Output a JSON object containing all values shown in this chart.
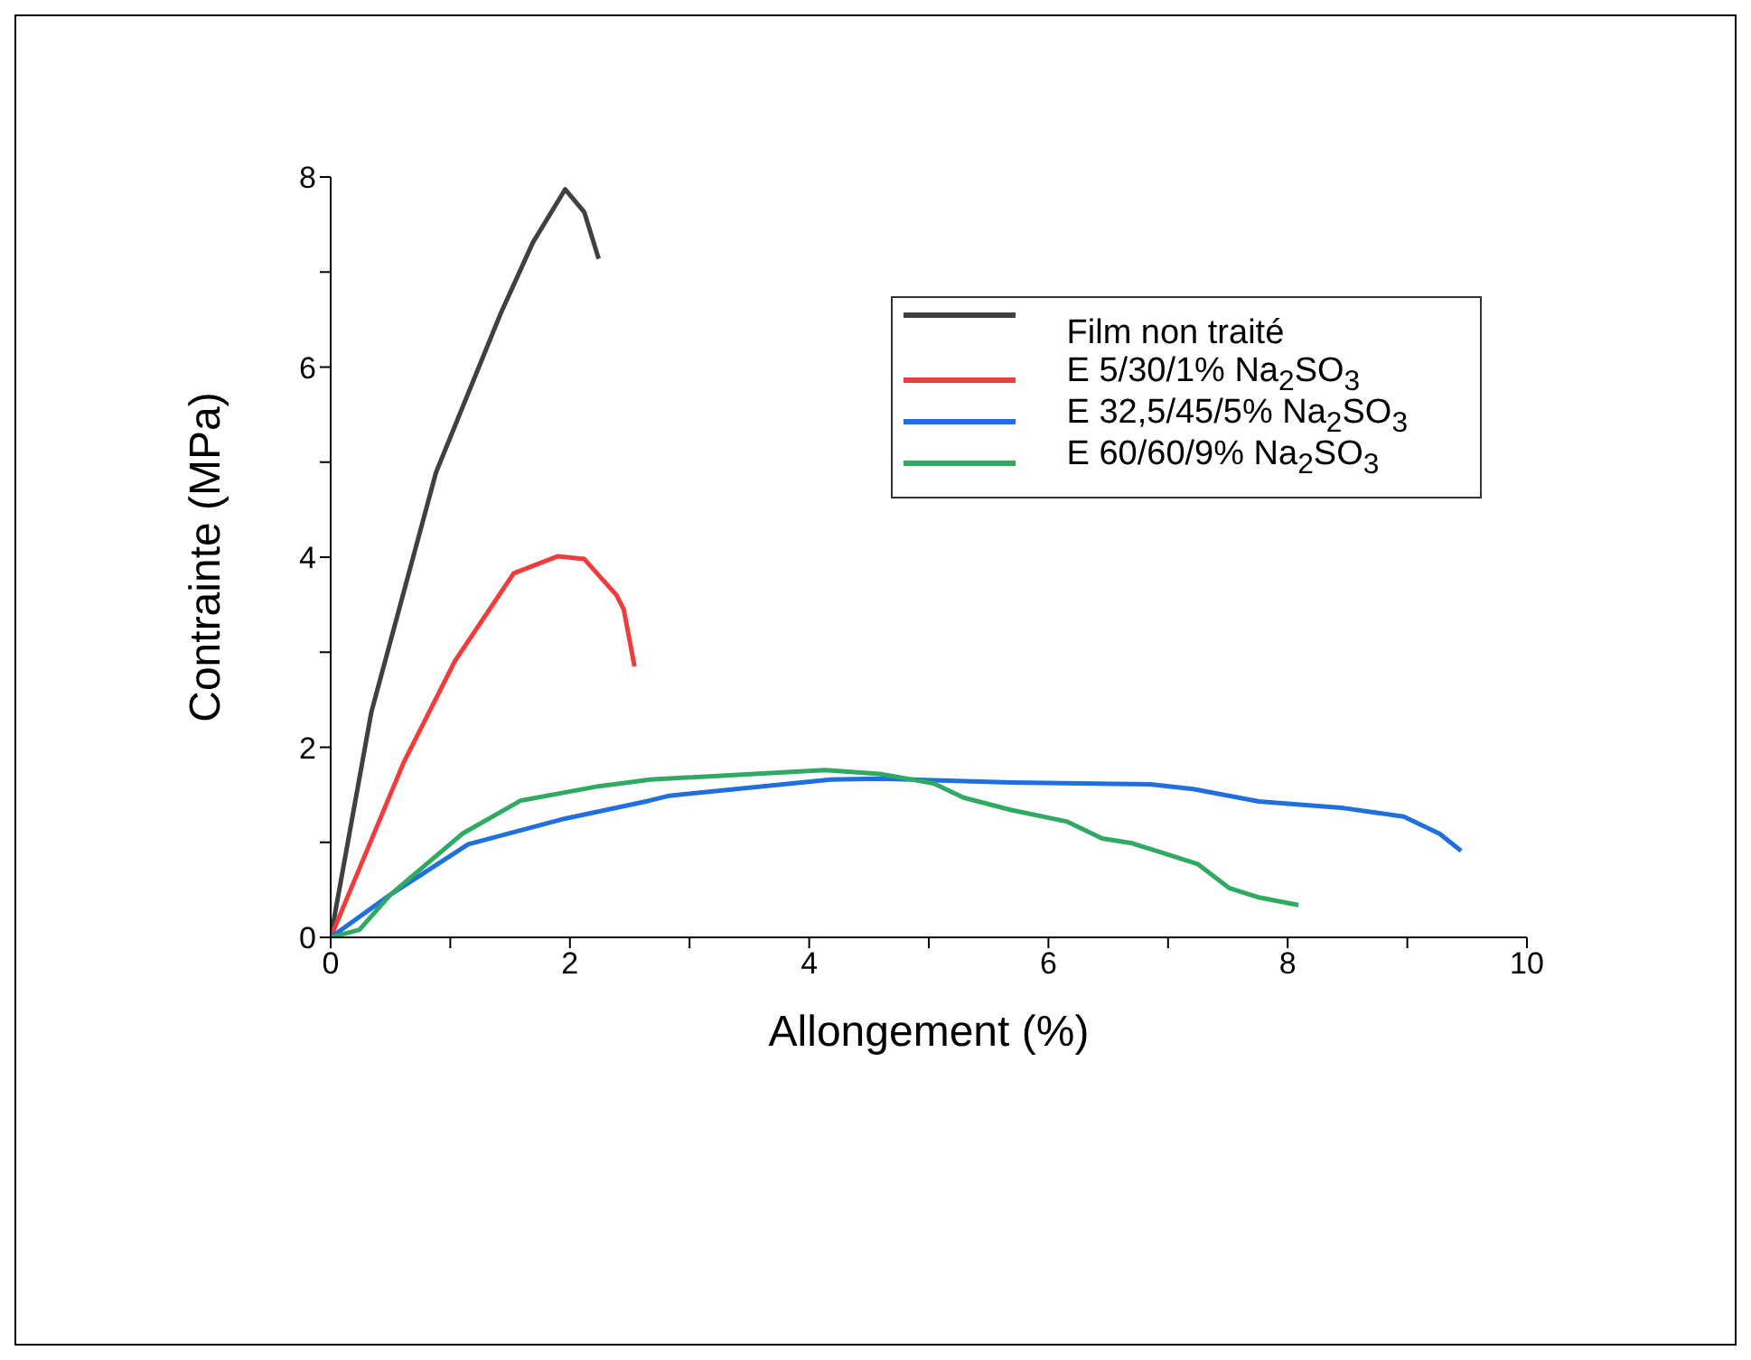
{
  "chart_data": {
    "type": "line",
    "xlabel": "Allongement (%)",
    "ylabel": "Contrainte (MPa)",
    "xlim": [
      0,
      10
    ],
    "ylim": [
      0,
      8
    ],
    "xticks": [
      0,
      {
        "value": 1,
        "label": null
      },
      2,
      {
        "value": 3,
        "label": null
      },
      4,
      {
        "value": 5,
        "label": null
      },
      6,
      {
        "value": 7,
        "label": null
      },
      8,
      {
        "value": 9,
        "label": null
      },
      10
    ],
    "yticks": [
      0,
      {
        "value": 1,
        "label": null
      },
      2,
      {
        "value": 3,
        "label": null
      },
      4,
      {
        "value": 5,
        "label": null
      },
      6,
      {
        "value": 7,
        "label": null
      },
      8
    ],
    "grid": false,
    "legend": "top right",
    "marker": "none",
    "line_style": "solid",
    "series": [
      {
        "name": "Film non traité",
        "color": "#404040",
        "x": [
          0,
          0.34,
          0.88,
          1.42,
          1.69,
          1.96,
          2.12,
          2.24
        ],
        "values": [
          0,
          2.37,
          4.89,
          6.56,
          7.31,
          7.87,
          7.63,
          7.14
        ]
      },
      {
        "name": "E 5/30/1% Na$_{2}$SO$_{3}$",
        "color": "#f03c3c",
        "x": [
          0,
          0.61,
          1.04,
          1.53,
          1.9,
          2.12,
          2.39,
          2.45,
          2.54
        ],
        "values": [
          0,
          1.84,
          2.91,
          3.83,
          4.01,
          3.98,
          3.6,
          3.45,
          2.85
        ]
      },
      {
        "name": "E 32,5/45/5% Na$_{2}$SO$_{3}$",
        "color": "#1f6fe0",
        "x": [
          0,
          0.5,
          1.15,
          1.96,
          2.67,
          2.83,
          4.18,
          4.59,
          5.69,
          6.85,
          7.21,
          7.76,
          8.47,
          8.97,
          9.12,
          9.27,
          9.45
        ],
        "values": [
          0,
          0.45,
          0.98,
          1.25,
          1.44,
          1.49,
          1.66,
          1.67,
          1.63,
          1.61,
          1.56,
          1.43,
          1.36,
          1.27,
          1.18,
          1.09,
          0.91
        ]
      },
      {
        "name": "E 60/60/9% Na$_{2}$SO$_{3}$",
        "color": "#2eaa62",
        "x": [
          0,
          0.24,
          0.5,
          1.1,
          1.59,
          2.24,
          2.67,
          4.13,
          4.59,
          5.04,
          5.29,
          5.69,
          6.15,
          6.45,
          6.7,
          7.25,
          7.51,
          7.76,
          8.09
        ],
        "values": [
          0,
          0.08,
          0.45,
          1.09,
          1.44,
          1.59,
          1.66,
          1.76,
          1.72,
          1.62,
          1.47,
          1.34,
          1.22,
          1.04,
          0.99,
          0.77,
          0.52,
          0.42,
          0.34
        ]
      }
    ]
  }
}
